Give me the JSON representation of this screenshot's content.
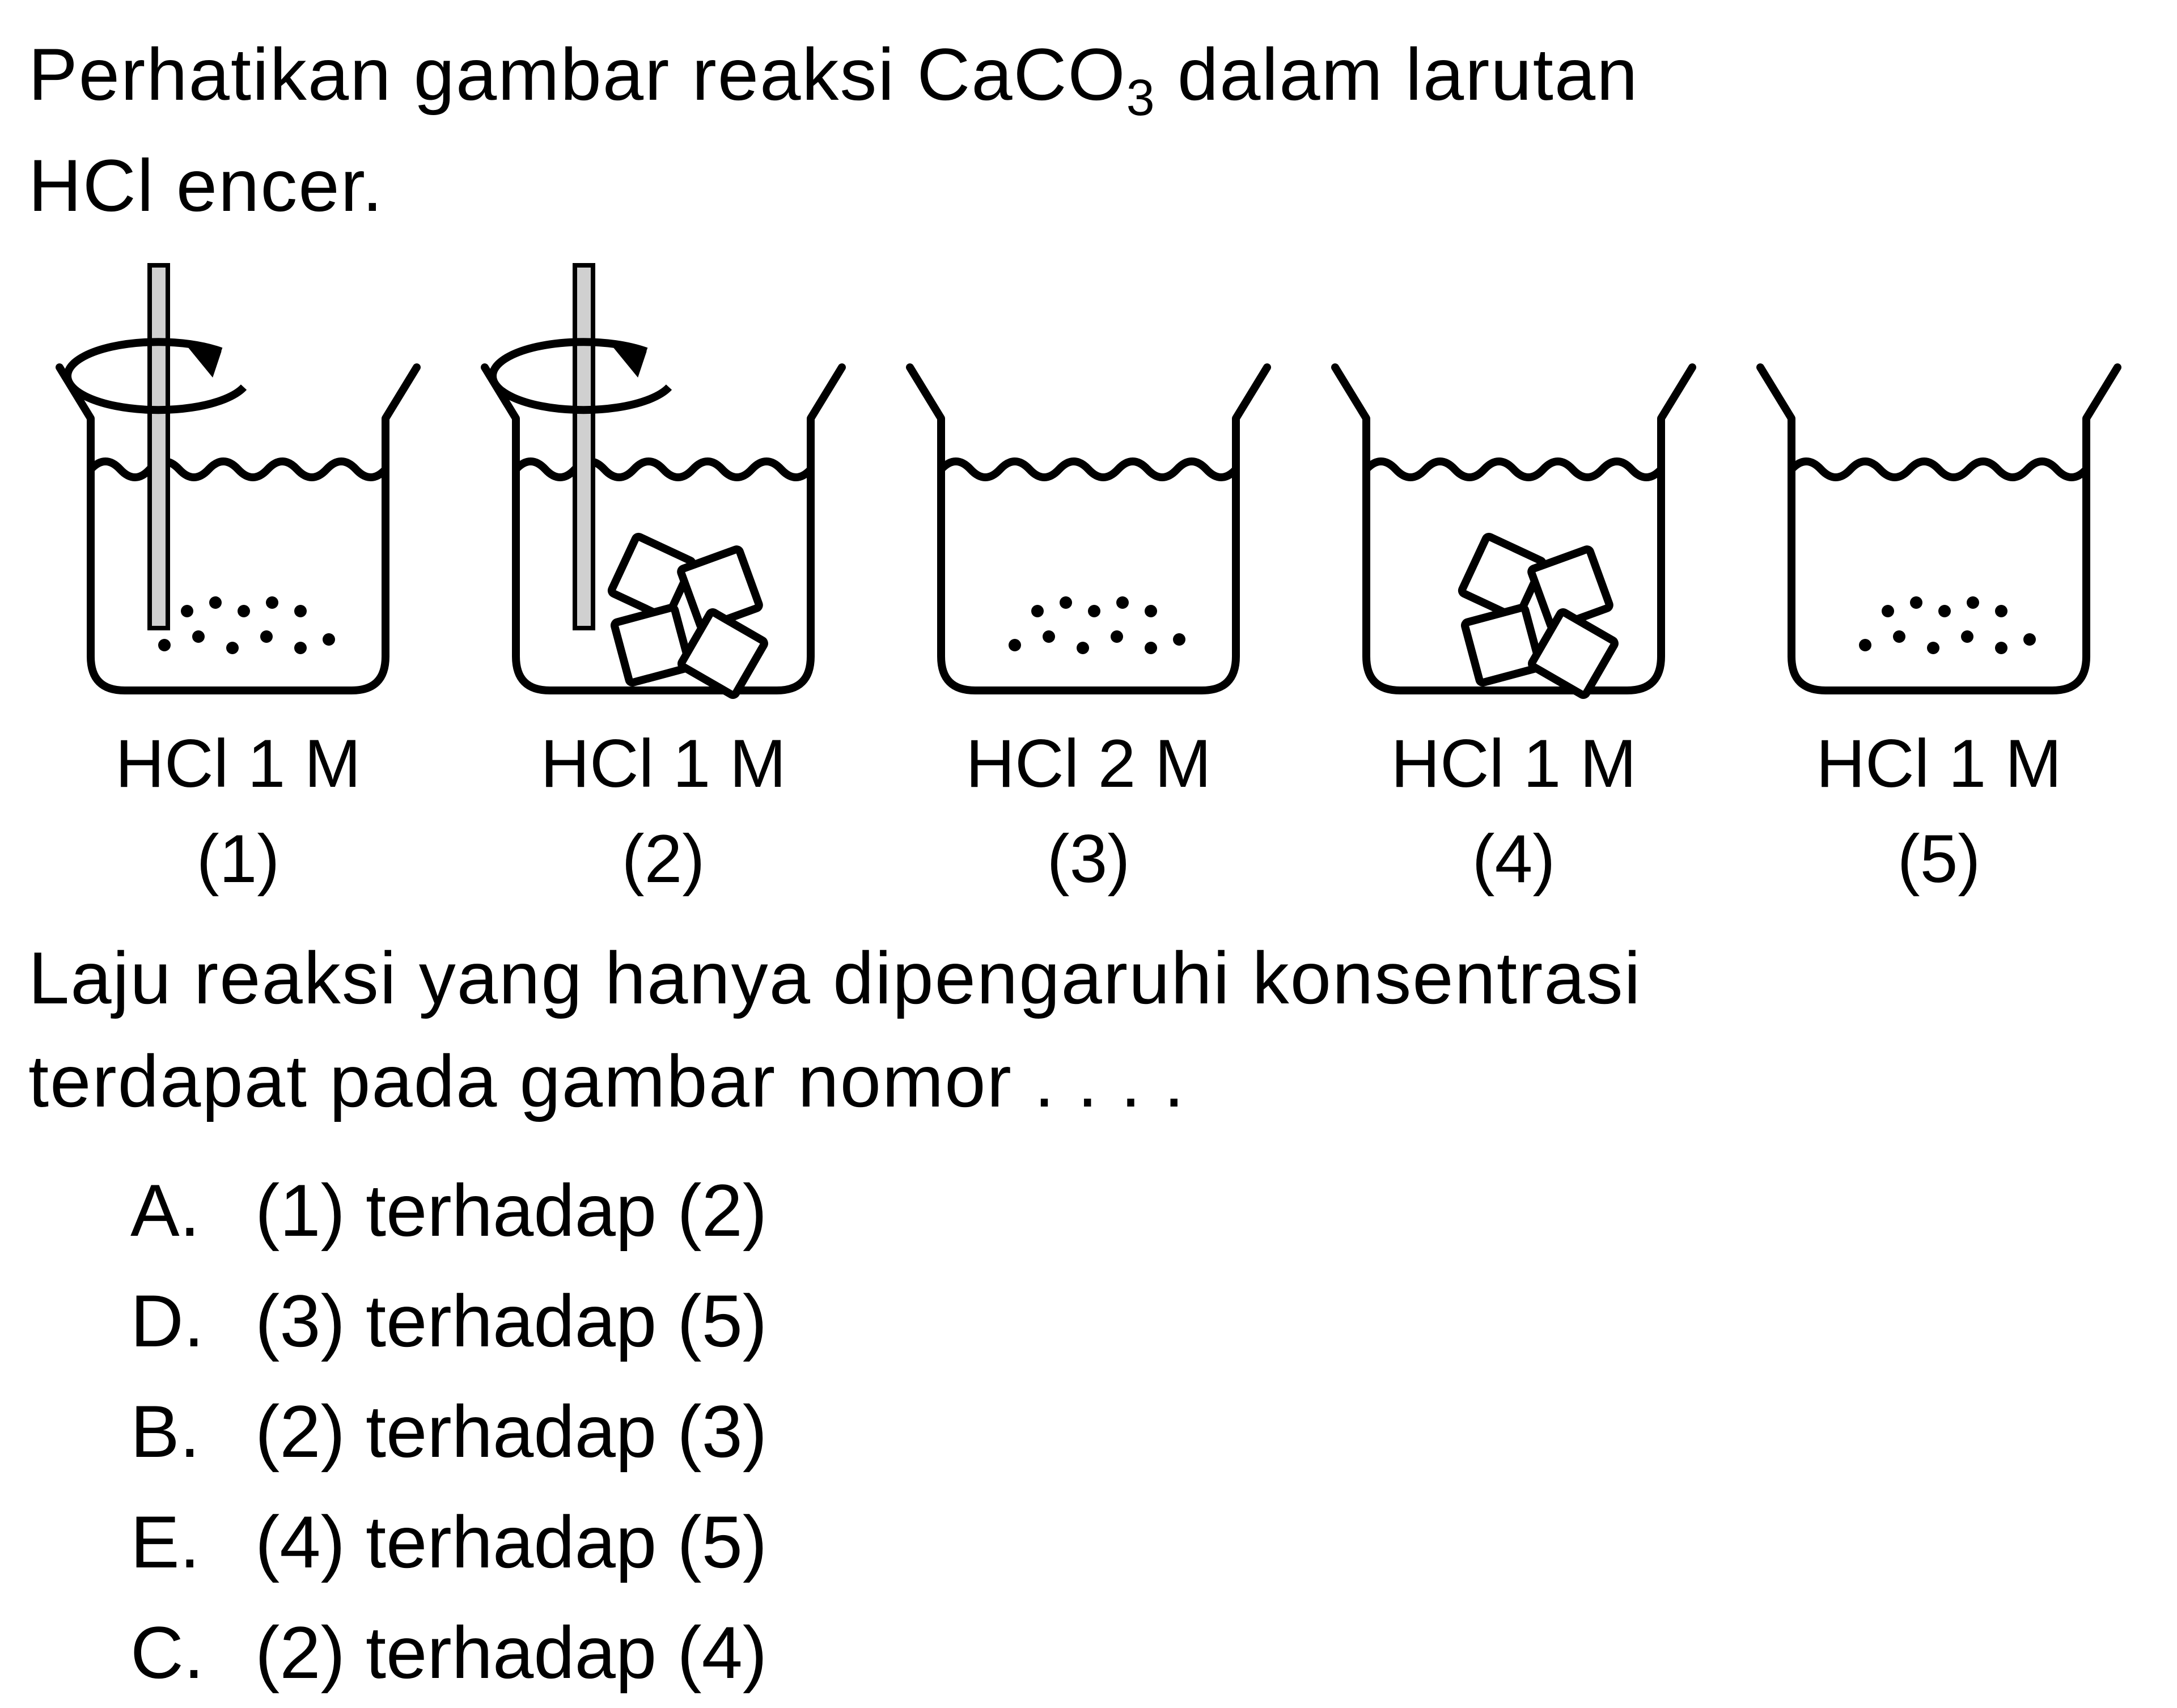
{
  "question": {
    "line1": "Perhatikan gambar reaksi CaCO",
    "subscript": "3",
    "line1b": " dalam larutan",
    "line2": "HCl encer."
  },
  "beakers": [
    {
      "label": "HCl 1 M",
      "number": "(1)",
      "stirrer": true,
      "content": "powder"
    },
    {
      "label": "HCl 1 M",
      "number": "(2)",
      "stirrer": true,
      "content": "chunks"
    },
    {
      "label": "HCl 2 M",
      "number": "(3)",
      "stirrer": false,
      "content": "powder"
    },
    {
      "label": "HCl 1 M",
      "number": "(4)",
      "stirrer": false,
      "content": "chunks"
    },
    {
      "label": "HCl 1 M",
      "number": "(5)",
      "stirrer": false,
      "content": "powder"
    }
  ],
  "followup": {
    "line1": "Laju reaksi yang hanya dipengaruhi konsentrasi",
    "line2": "terdapat pada gambar nomor . . . ."
  },
  "options": {
    "A": "(1) terhadap (2)",
    "B": "(2) terhadap (3)",
    "C": "(2) terhadap (4)",
    "D": "(3) terhadap (5)",
    "E": "(4) terhadap (5)"
  },
  "style": {
    "stroke": "#000000",
    "stroke_width": 14,
    "fill_none": "none",
    "hatch_fill": "#d0d0d0",
    "font_color": "#000000"
  }
}
